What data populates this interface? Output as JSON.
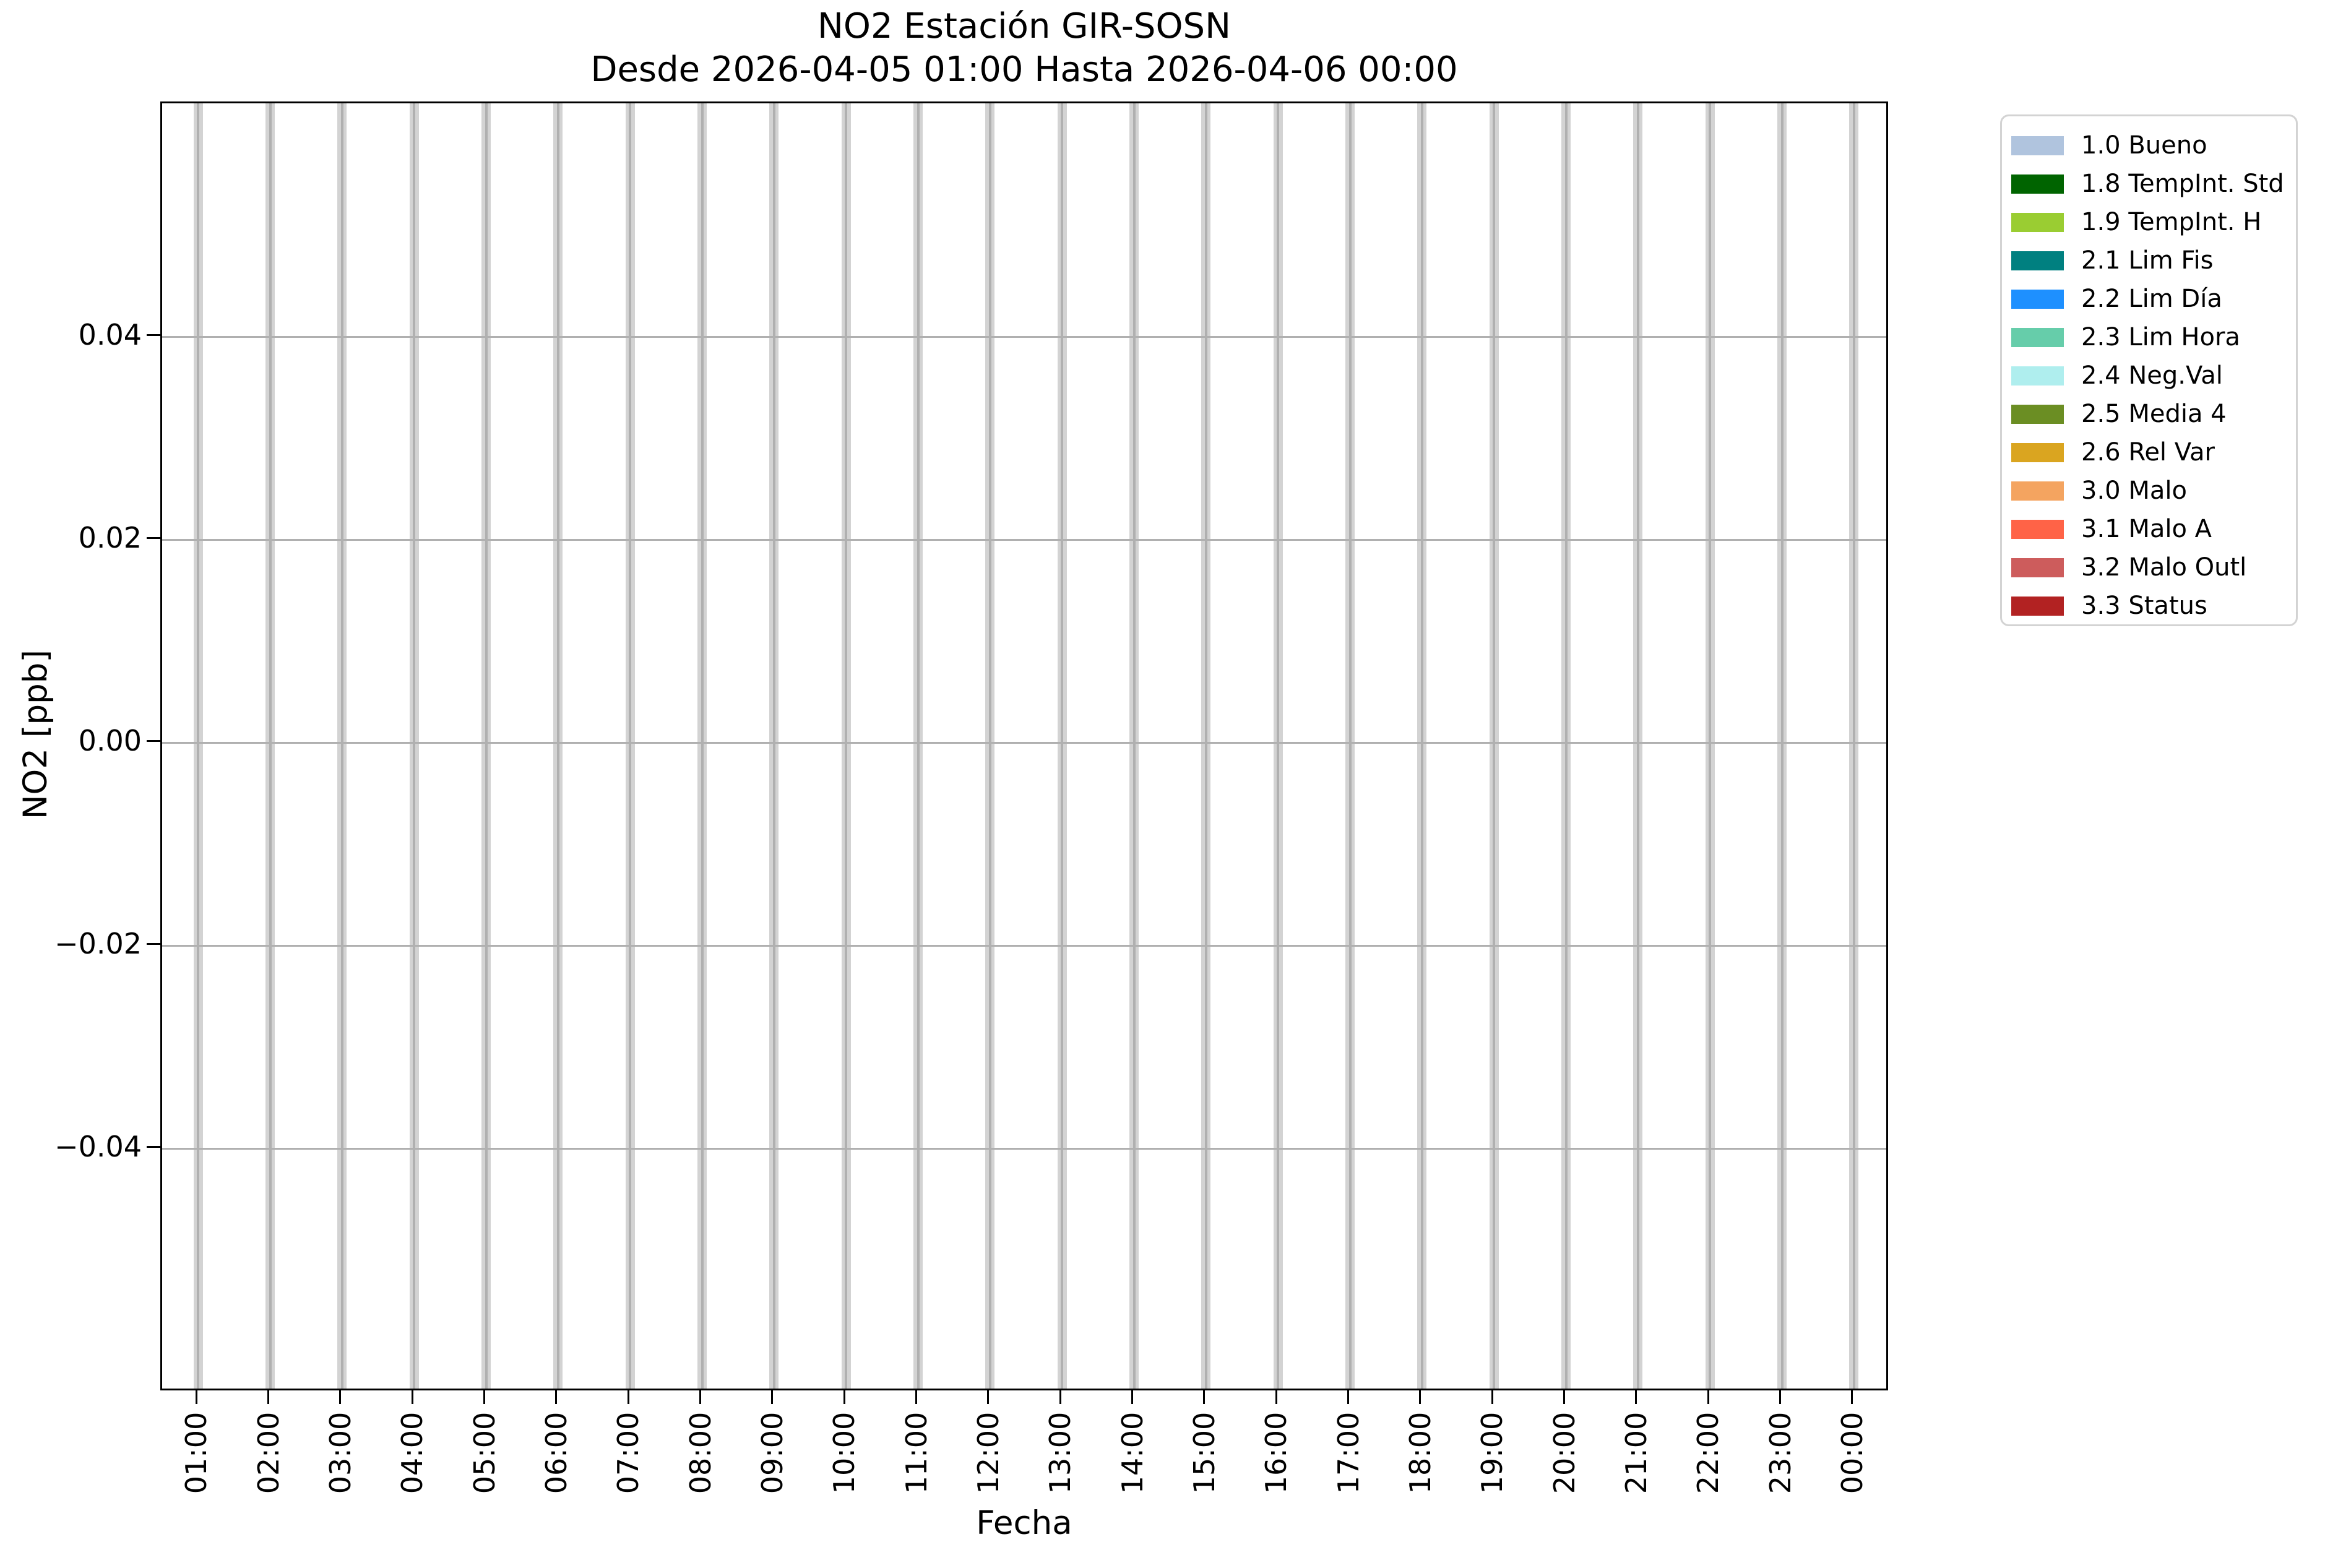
{
  "figure": {
    "title_line1": "NO2 Estación GIR-SOSN",
    "title_line2": "Desde 2026-04-05 01:00 Hasta 2026-04-06 00:00",
    "xlabel": "Fecha",
    "ylabel": "NO2 [ppb]"
  },
  "chart_data": {
    "type": "bar",
    "title": "NO2 Estación GIR-SOSN",
    "subtitle": "Desde 2026-04-05 01:00 Hasta 2026-04-06 00:00",
    "xlabel": "Fecha",
    "ylabel": "NO2 [ppb]",
    "categories": [
      "01:00",
      "02:00",
      "03:00",
      "04:00",
      "05:00",
      "06:00",
      "07:00",
      "08:00",
      "09:00",
      "10:00",
      "11:00",
      "12:00",
      "13:00",
      "14:00",
      "15:00",
      "16:00",
      "17:00",
      "18:00",
      "19:00",
      "20:00",
      "21:00",
      "22:00",
      "23:00",
      "00:00"
    ],
    "values": [
      0,
      0,
      0,
      0,
      0,
      0,
      0,
      0,
      0,
      0,
      0,
      0,
      0,
      0,
      0,
      0,
      0,
      0,
      0,
      0,
      0,
      0,
      0,
      0
    ],
    "full_height_gray_bands": true,
    "band_color": "#d3d3d3",
    "ylim": [
      -0.064,
      0.063
    ],
    "yticks": [
      0.04,
      0.02,
      0.0,
      -0.02,
      -0.04
    ],
    "ytick_labels": [
      "0.04",
      "0.02",
      "0.00",
      "−0.02",
      "−0.04"
    ],
    "grid": true,
    "grid_color": "#b0b0b0",
    "spine_color": "#000000",
    "legend_position": "outside upper right",
    "legend": [
      {
        "label": "1.0 Bueno",
        "color": "#b0c4de"
      },
      {
        "label": "1.8 TempInt. Std",
        "color": "#006400"
      },
      {
        "label": "1.9 TempInt. H",
        "color": "#9acd32"
      },
      {
        "label": "2.1 Lim Fis",
        "color": "#008080"
      },
      {
        "label": "2.2 Lim Día",
        "color": "#1e90ff"
      },
      {
        "label": "2.3 Lim Hora",
        "color": "#66cdaa"
      },
      {
        "label": "2.4 Neg.Val",
        "color": "#afeeee"
      },
      {
        "label": "2.5 Media 4",
        "color": "#6b8e23"
      },
      {
        "label": "2.6 Rel Var",
        "color": "#daa520"
      },
      {
        "label": "3.0 Malo",
        "color": "#f4a460"
      },
      {
        "label": "3.1 Malo A",
        "color": "#ff6347"
      },
      {
        "label": "3.2 Malo Outl",
        "color": "#cd5c5c"
      },
      {
        "label": "3.3 Status",
        "color": "#b22222"
      }
    ]
  }
}
